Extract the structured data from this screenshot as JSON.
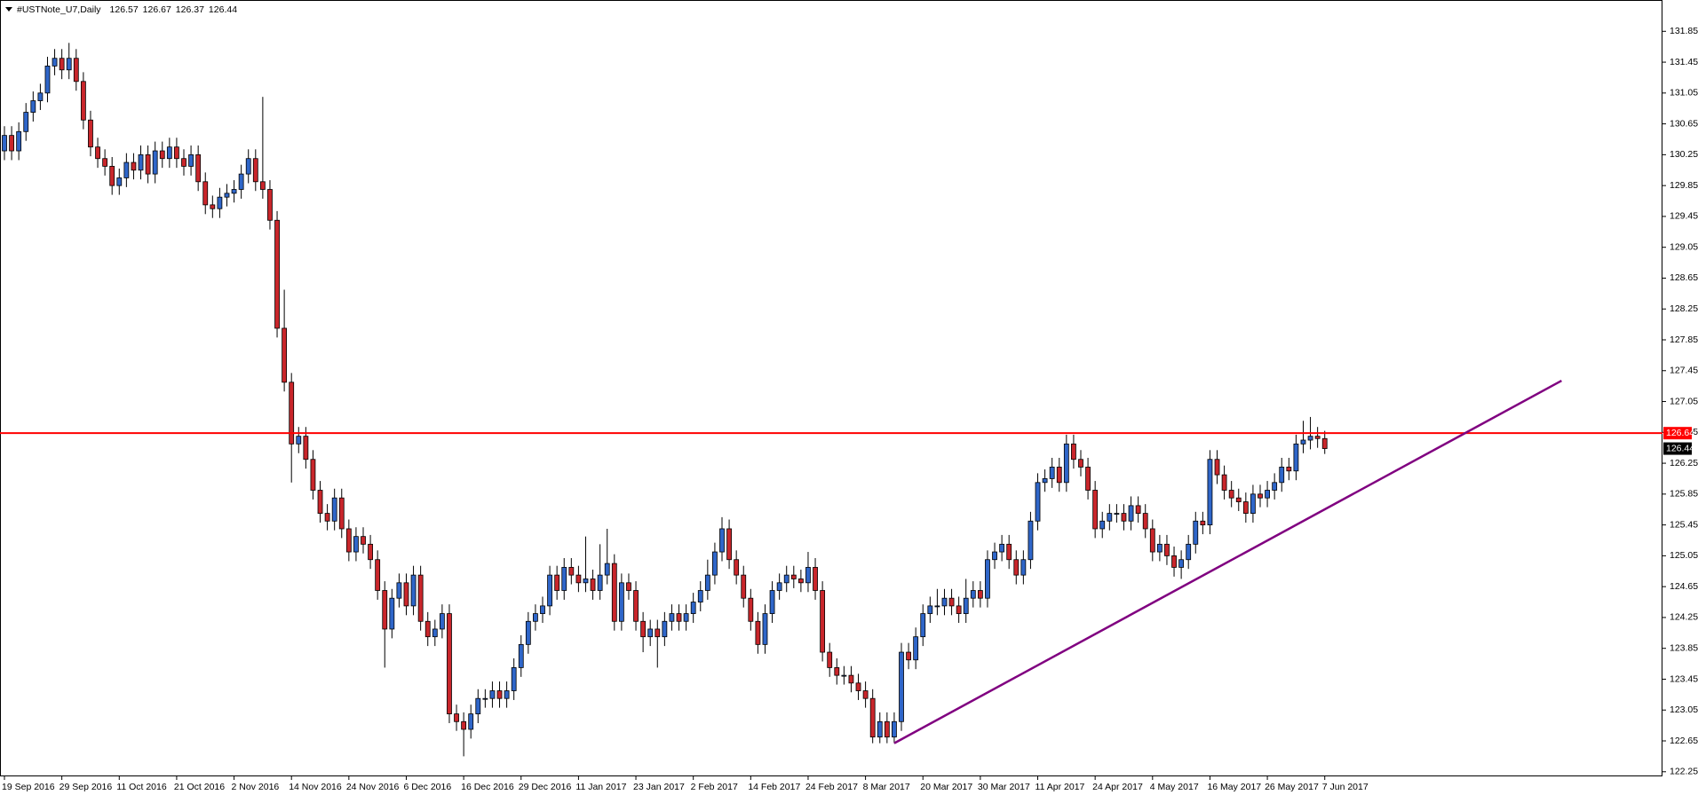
{
  "chart_data": {
    "type": "candlestick",
    "symbol": "#USTNote_U7,Daily",
    "ohlc": [
      126.57,
      126.67,
      126.37,
      126.44
    ],
    "up_color": "#2f66c9",
    "down_color": "#c9262b",
    "categories": [
      "19 Sep 2016",
      null,
      null,
      null,
      null,
      null,
      null,
      null,
      "29 Sep 2016",
      null,
      null,
      null,
      null,
      null,
      null,
      null,
      "11 Oct 2016",
      null,
      null,
      null,
      null,
      null,
      null,
      null,
      "21 Oct 2016",
      null,
      null,
      null,
      null,
      null,
      null,
      null,
      "2 Nov 2016",
      null,
      null,
      null,
      null,
      null,
      null,
      null,
      "14 Nov 2016",
      null,
      null,
      null,
      null,
      null,
      null,
      null,
      "24 Nov 2016",
      null,
      null,
      null,
      null,
      null,
      null,
      null,
      "6 Dec 2016",
      null,
      null,
      null,
      null,
      null,
      null,
      null,
      "16 Dec 2016",
      null,
      null,
      null,
      null,
      null,
      null,
      null,
      "29 Dec 2016",
      null,
      null,
      null,
      null,
      null,
      null,
      null,
      "11 Jan 2017",
      null,
      null,
      null,
      null,
      null,
      null,
      null,
      "23 Jan 2017",
      null,
      null,
      null,
      null,
      null,
      null,
      null,
      "2 Feb 2017",
      null,
      null,
      null,
      null,
      null,
      null,
      null,
      "14 Feb 2017",
      null,
      null,
      null,
      null,
      null,
      null,
      null,
      "24 Feb 2017",
      null,
      null,
      null,
      null,
      null,
      null,
      null,
      "8 Mar 2017",
      null,
      null,
      null,
      null,
      null,
      null,
      null,
      "20 Mar 2017",
      null,
      null,
      null,
      null,
      null,
      null,
      null,
      "30 Mar 2017",
      null,
      null,
      null,
      null,
      null,
      null,
      null,
      "11 Apr 2017",
      null,
      null,
      null,
      null,
      null,
      null,
      null,
      "24 Apr 2017",
      null,
      null,
      null,
      null,
      null,
      null,
      null,
      "4 May 2017",
      null,
      null,
      null,
      null,
      null,
      null,
      null,
      "16 May 2017",
      null,
      null,
      null,
      null,
      null,
      null,
      null,
      "26 May 2017",
      null,
      null,
      null,
      null,
      null,
      null,
      null,
      "7 Jun 2017"
    ],
    "open": [
      130.3,
      130.5,
      130.3,
      130.55,
      130.8,
      130.95,
      131.05,
      131.4,
      131.5,
      131.35,
      131.5,
      131.2,
      130.7,
      130.35,
      130.2,
      130.1,
      129.85,
      129.95,
      130.15,
      130.05,
      130.25,
      130.0,
      130.3,
      130.2,
      130.35,
      130.2,
      130.1,
      130.25,
      129.9,
      129.6,
      129.55,
      129.7,
      129.75,
      129.8,
      130.0,
      130.2,
      129.9,
      129.8,
      129.4,
      128.0,
      127.3,
      126.5,
      126.6,
      126.3,
      125.9,
      125.6,
      125.5,
      125.8,
      125.4,
      125.1,
      125.3,
      125.2,
      125.0,
      124.6,
      124.1,
      124.5,
      124.7,
      124.4,
      124.8,
      124.2,
      124.0,
      124.1,
      124.3,
      123.0,
      122.9,
      122.8,
      123.0,
      123.2,
      123.2,
      123.3,
      123.2,
      123.3,
      123.6,
      123.9,
      124.2,
      124.3,
      124.4,
      124.8,
      124.6,
      124.9,
      124.8,
      124.7,
      124.75,
      124.6,
      124.8,
      124.95,
      124.2,
      124.7,
      124.6,
      124.2,
      124.0,
      124.1,
      124.0,
      124.2,
      124.3,
      124.2,
      124.3,
      124.45,
      124.6,
      124.8,
      125.1,
      125.4,
      125.0,
      124.8,
      124.5,
      124.2,
      123.9,
      124.3,
      124.6,
      124.7,
      124.8,
      124.75,
      124.7,
      124.9,
      124.6,
      123.8,
      123.6,
      123.5,
      123.5,
      123.4,
      123.3,
      123.2,
      122.7,
      122.9,
      122.7,
      122.9,
      123.8,
      123.7,
      124.0,
      124.3,
      124.4,
      124.4,
      124.5,
      124.4,
      124.3,
      124.5,
      124.6,
      124.5,
      125.0,
      125.1,
      125.2,
      125.0,
      124.8,
      125.0,
      125.5,
      126.0,
      126.05,
      126.2,
      126.0,
      126.5,
      126.3,
      126.2,
      125.9,
      125.4,
      125.5,
      125.6,
      125.6,
      125.5,
      125.7,
      125.6,
      125.4,
      125.1,
      125.2,
      125.05,
      124.9,
      125.0,
      125.2,
      125.5,
      125.45,
      126.3,
      126.1,
      125.9,
      125.8,
      125.75,
      125.6,
      125.85,
      125.8,
      125.9,
      126.0,
      126.2,
      126.15,
      126.5,
      126.55,
      126.6,
      126.57
    ],
    "high": [
      130.62,
      130.62,
      130.67,
      130.92,
      131.07,
      131.17,
      131.52,
      131.62,
      131.62,
      131.7,
      131.62,
      131.32,
      130.82,
      130.47,
      130.32,
      130.22,
      130.07,
      130.27,
      130.27,
      130.37,
      130.37,
      130.42,
      130.42,
      130.47,
      130.47,
      130.32,
      130.37,
      130.37,
      130.02,
      129.72,
      129.82,
      129.87,
      129.92,
      130.12,
      130.32,
      130.32,
      131.0,
      129.92,
      129.52,
      128.5,
      127.42,
      126.72,
      126.72,
      126.42,
      126.02,
      125.72,
      125.92,
      125.92,
      125.52,
      125.42,
      125.42,
      125.32,
      125.12,
      124.72,
      124.62,
      124.82,
      124.82,
      124.92,
      124.92,
      124.32,
      124.22,
      124.42,
      124.42,
      123.12,
      123.02,
      123.12,
      123.32,
      123.32,
      123.42,
      123.42,
      123.42,
      123.72,
      124.02,
      124.32,
      124.42,
      124.52,
      124.92,
      124.92,
      125.02,
      125.02,
      124.92,
      125.3,
      124.87,
      125.2,
      125.4,
      125.07,
      124.82,
      124.82,
      124.72,
      124.32,
      124.22,
      124.22,
      124.32,
      124.42,
      124.42,
      124.42,
      124.57,
      124.72,
      125.0,
      125.22,
      125.55,
      125.52,
      125.12,
      124.92,
      124.62,
      124.32,
      124.42,
      124.72,
      124.82,
      124.92,
      124.92,
      124.87,
      125.1,
      125.02,
      124.72,
      123.92,
      123.72,
      123.62,
      123.62,
      123.52,
      123.42,
      123.32,
      123.02,
      123.02,
      123.02,
      123.92,
      123.92,
      124.12,
      124.42,
      124.52,
      124.62,
      124.62,
      124.62,
      124.52,
      124.75,
      124.72,
      124.72,
      125.12,
      125.22,
      125.32,
      125.32,
      125.12,
      125.12,
      125.62,
      126.12,
      126.17,
      126.32,
      126.32,
      126.62,
      126.62,
      126.42,
      126.32,
      126.02,
      125.62,
      125.72,
      125.72,
      125.72,
      125.82,
      125.82,
      125.72,
      125.52,
      125.32,
      125.32,
      125.17,
      125.12,
      125.32,
      125.62,
      125.62,
      126.42,
      126.42,
      126.22,
      126.02,
      125.92,
      125.87,
      125.97,
      125.97,
      126.02,
      126.12,
      126.32,
      126.32,
      126.62,
      126.8,
      126.85,
      126.72,
      126.67
    ],
    "low": [
      130.18,
      130.18,
      130.18,
      130.43,
      130.68,
      130.83,
      130.93,
      131.28,
      131.23,
      131.23,
      131.08,
      130.58,
      130.23,
      130.08,
      129.98,
      129.73,
      129.73,
      129.83,
      129.93,
      129.93,
      129.88,
      129.88,
      130.08,
      130.08,
      130.08,
      129.98,
      129.98,
      129.78,
      129.48,
      129.43,
      129.43,
      129.58,
      129.63,
      129.68,
      129.88,
      129.78,
      129.68,
      129.28,
      127.88,
      127.18,
      126.0,
      126.38,
      126.18,
      125.78,
      125.48,
      125.38,
      125.38,
      125.28,
      124.98,
      124.98,
      125.08,
      124.88,
      124.48,
      123.6,
      123.98,
      124.38,
      124.28,
      124.28,
      124.08,
      123.88,
      123.88,
      123.98,
      122.88,
      122.78,
      122.45,
      122.68,
      122.88,
      123.08,
      123.08,
      123.08,
      123.08,
      123.18,
      123.48,
      123.78,
      124.08,
      124.18,
      124.28,
      124.48,
      124.48,
      124.68,
      124.58,
      124.58,
      124.48,
      124.48,
      124.68,
      124.08,
      124.08,
      124.48,
      124.08,
      123.8,
      123.88,
      123.6,
      123.88,
      124.08,
      124.08,
      124.08,
      124.18,
      124.33,
      124.48,
      124.68,
      124.98,
      124.88,
      124.68,
      124.38,
      124.08,
      123.78,
      123.78,
      124.18,
      124.48,
      124.58,
      124.63,
      124.58,
      124.58,
      124.48,
      123.68,
      123.48,
      123.38,
      123.38,
      123.28,
      123.18,
      123.08,
      122.62,
      122.62,
      122.62,
      122.62,
      122.78,
      123.58,
      123.58,
      123.88,
      124.18,
      124.28,
      124.28,
      124.28,
      124.18,
      124.18,
      124.38,
      124.38,
      124.38,
      124.88,
      124.98,
      124.88,
      124.68,
      124.68,
      124.88,
      125.38,
      125.88,
      125.93,
      125.88,
      125.88,
      126.18,
      126.08,
      125.78,
      125.28,
      125.28,
      125.38,
      125.48,
      125.38,
      125.38,
      125.48,
      125.28,
      124.98,
      124.98,
      124.93,
      124.78,
      124.75,
      124.88,
      125.08,
      125.33,
      125.33,
      125.98,
      125.78,
      125.68,
      125.63,
      125.48,
      125.48,
      125.68,
      125.68,
      125.78,
      125.88,
      126.03,
      126.03,
      126.38,
      126.43,
      126.45,
      126.37
    ],
    "close": [
      130.5,
      130.3,
      130.55,
      130.8,
      130.95,
      131.05,
      131.4,
      131.5,
      131.35,
      131.5,
      131.2,
      130.7,
      130.35,
      130.2,
      130.1,
      129.85,
      129.95,
      130.15,
      130.05,
      130.25,
      130.0,
      130.3,
      130.2,
      130.35,
      130.2,
      130.1,
      130.25,
      129.9,
      129.6,
      129.55,
      129.7,
      129.75,
      129.8,
      130.0,
      130.2,
      129.9,
      129.8,
      129.4,
      128.0,
      127.3,
      126.5,
      126.6,
      126.3,
      125.9,
      125.6,
      125.5,
      125.8,
      125.4,
      125.1,
      125.3,
      125.2,
      125.0,
      124.6,
      124.1,
      124.5,
      124.7,
      124.4,
      124.8,
      124.2,
      124.0,
      124.1,
      124.3,
      123.0,
      122.9,
      122.8,
      123.0,
      123.2,
      123.2,
      123.3,
      123.2,
      123.3,
      123.6,
      123.9,
      124.2,
      124.3,
      124.4,
      124.8,
      124.6,
      124.9,
      124.8,
      124.7,
      124.75,
      124.6,
      124.8,
      124.95,
      124.2,
      124.7,
      124.6,
      124.2,
      124.0,
      124.1,
      124.0,
      124.2,
      124.3,
      124.2,
      124.3,
      124.45,
      124.6,
      124.8,
      125.1,
      125.4,
      125.0,
      124.8,
      124.5,
      124.2,
      123.9,
      124.3,
      124.6,
      124.7,
      124.8,
      124.75,
      124.7,
      124.9,
      124.6,
      123.8,
      123.6,
      123.5,
      123.5,
      123.4,
      123.3,
      123.2,
      122.7,
      122.9,
      122.7,
      122.9,
      123.8,
      123.7,
      124.0,
      124.3,
      124.4,
      124.4,
      124.5,
      124.4,
      124.3,
      124.5,
      124.6,
      124.5,
      125.0,
      125.1,
      125.2,
      125.0,
      124.8,
      125.0,
      125.5,
      126.0,
      126.05,
      126.2,
      126.0,
      126.5,
      126.3,
      126.2,
      125.9,
      125.4,
      125.5,
      125.6,
      125.6,
      125.5,
      125.7,
      125.6,
      125.4,
      125.1,
      125.2,
      125.05,
      124.9,
      125.0,
      125.2,
      125.5,
      125.45,
      126.3,
      126.1,
      125.9,
      125.8,
      125.75,
      125.6,
      125.85,
      125.8,
      125.9,
      126.0,
      126.2,
      126.15,
      126.5,
      126.55,
      126.6,
      126.57,
      126.44
    ],
    "ylim": [
      122.19,
      132.21
    ],
    "yticks": [
      131.85,
      131.45,
      131.05,
      130.65,
      130.25,
      129.85,
      129.45,
      129.05,
      128.65,
      128.25,
      127.85,
      127.45,
      127.05,
      126.65,
      126.25,
      125.85,
      125.45,
      125.05,
      124.65,
      124.25,
      123.85,
      123.45,
      123.05,
      122.65,
      122.25
    ],
    "level": {
      "value": 126.64,
      "color": "#ff0000"
    },
    "trendline": {
      "color": "#800080",
      "start": {
        "index": 124,
        "price": 122.62
      },
      "end": {
        "index": 217,
        "price": 127.32
      }
    }
  }
}
